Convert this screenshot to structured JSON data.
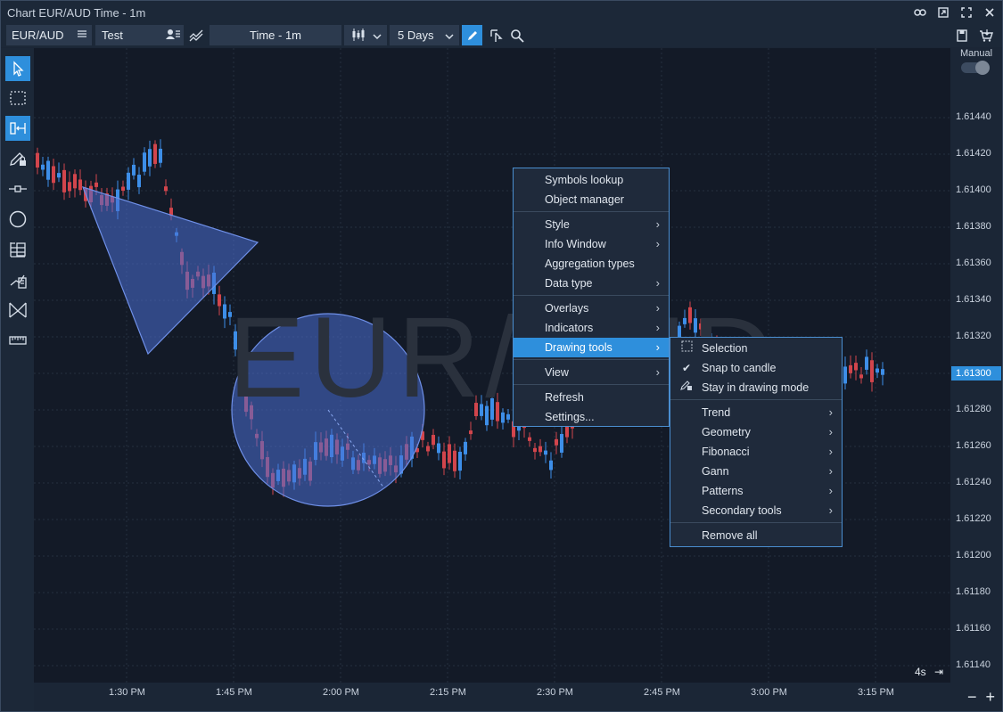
{
  "window": {
    "title": "Chart EUR/AUD Time - 1m"
  },
  "toolbar": {
    "symbol": "EUR/AUD",
    "layout": "Test",
    "interval": "Time - 1m",
    "range": "5 Days"
  },
  "chart": {
    "watermark": "EUR/AUD",
    "price_labels": [
      "1.61440",
      "1.61420",
      "1.61400",
      "1.61380",
      "1.61360",
      "1.61340",
      "1.61320",
      "1.61300",
      "1.61280",
      "1.61260",
      "1.61240",
      "1.61220",
      "1.61200",
      "1.61180",
      "1.61160",
      "1.61140"
    ],
    "current_price": "1.61300",
    "time_labels": [
      "1:30 PM",
      "1:45 PM",
      "2:00 PM",
      "2:15 PM",
      "2:30 PM",
      "2:45 PM",
      "3:00 PM",
      "3:15 PM"
    ],
    "mode_label": "Manual",
    "zoom_label": "4s",
    "colors": {
      "up": "#3d8ee8",
      "down": "#d2454c",
      "shape": "#4a6fd4",
      "accent": "#2e8fdc"
    }
  },
  "context_menu": {
    "items": [
      {
        "label": "Symbols lookup"
      },
      {
        "label": "Object manager"
      },
      {
        "label": "Style"
      },
      {
        "label": "Info Window"
      },
      {
        "label": "Aggregation types"
      },
      {
        "label": "Data type"
      },
      {
        "label": "Overlays"
      },
      {
        "label": "Indicators"
      },
      {
        "label": "Drawing tools"
      },
      {
        "label": "View"
      },
      {
        "label": "Refresh"
      },
      {
        "label": "Settings..."
      }
    ]
  },
  "submenu": {
    "items": [
      {
        "label": "Selection"
      },
      {
        "label": "Snap to candle"
      },
      {
        "label": "Stay in drawing mode"
      },
      {
        "label": "Trend"
      },
      {
        "label": "Geometry"
      },
      {
        "label": "Fibonacci"
      },
      {
        "label": "Gann"
      },
      {
        "label": "Patterns"
      },
      {
        "label": "Secondary tools"
      },
      {
        "label": "Remove all"
      }
    ]
  },
  "icons": [
    "cursor-icon",
    "selection-rect-icon",
    "crosshair-icon",
    "pencil-lock-icon",
    "line-tool-icon",
    "circle-icon",
    "fibonacci-icon",
    "pattern-icon",
    "gann-icon",
    "ruler-icon",
    "link-icon",
    "restore-icon",
    "maximize-icon",
    "close-icon",
    "list-icon",
    "user-icon",
    "compare-icon",
    "candles-icon",
    "chevron-down-icon",
    "pencil-icon",
    "magnet-icon",
    "search-icon",
    "save-icon",
    "basket-icon"
  ]
}
